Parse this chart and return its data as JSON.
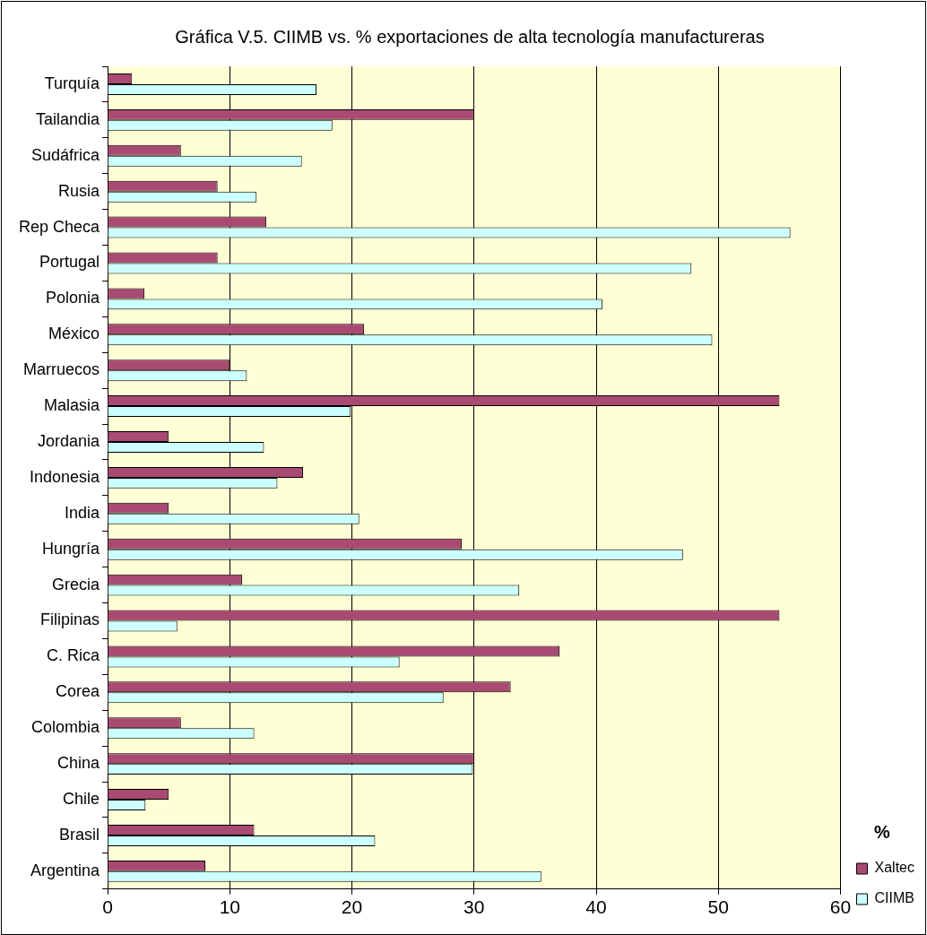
{
  "chart_data": {
    "type": "bar",
    "orientation": "horizontal",
    "title": "Gráfica V.5. CIIMB vs. % exportaciones de alta tecnología manufactureras",
    "legend_title": "%",
    "categories": [
      "Turquía",
      "Tailandia",
      "Sudáfrica",
      "Rusia",
      "Rep Checa",
      "Portugal",
      "Polonia",
      "México",
      "Marruecos",
      "Malasia",
      "Jordania",
      "Indonesia",
      "India",
      "Hungría",
      "Grecia",
      "Filipinas",
      "C. Rica",
      "Corea",
      "Colombia",
      "China",
      "Chile",
      "Brasil",
      "Argentina"
    ],
    "series": [
      {
        "name": "Xaltec",
        "color": "#a94a73",
        "values": [
          2,
          30,
          6,
          9,
          13,
          9,
          3,
          21,
          10,
          55,
          5,
          16,
          5,
          29,
          11,
          55,
          37,
          33,
          6,
          30,
          5,
          12,
          8
        ]
      },
      {
        "name": "CIIMB",
        "color": "#ccffff",
        "values": [
          17.1,
          18.4,
          15.9,
          12.2,
          55.9,
          47.8,
          40.5,
          49.5,
          11.4,
          19.9,
          12.8,
          13.9,
          20.6,
          47.1,
          33.7,
          5.7,
          23.9,
          27.5,
          12,
          29.9,
          3.1,
          21.9,
          35.5
        ]
      }
    ],
    "xlim": [
      0,
      60
    ],
    "xticks": [
      0,
      10,
      20,
      30,
      40,
      50,
      60
    ],
    "grid": "x",
    "legend": "bottom right"
  }
}
